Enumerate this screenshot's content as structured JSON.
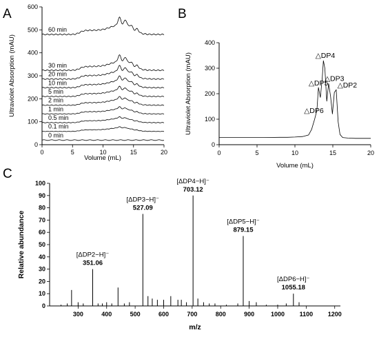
{
  "panels": {
    "a": "A",
    "b": "B",
    "c": "C"
  },
  "chart_data": [
    {
      "type": "line",
      "panel": "A",
      "xlabel": "Volume (mL)",
      "ylabel": "Ultraviolet Absorption (mAU)",
      "xlim": [
        0,
        20
      ],
      "ylim": [
        0,
        600
      ],
      "xticks": [
        "0",
        "5",
        "10",
        "15",
        "20"
      ],
      "yticks": [
        "0",
        "100",
        "200",
        "300",
        "400",
        "500",
        "600"
      ],
      "series": [
        {
          "name": "0 min",
          "offset": 20
        },
        {
          "name": "0.1 min",
          "offset": 58
        },
        {
          "name": "0.5 min",
          "offset": 96
        },
        {
          "name": "1 min",
          "offset": 134
        },
        {
          "name": "2 min",
          "offset": 172
        },
        {
          "name": "5 min",
          "offset": 210
        },
        {
          "name": "10 min",
          "offset": 248
        },
        {
          "name": "20 min",
          "offset": 286
        },
        {
          "name": "30 min",
          "offset": 324
        },
        {
          "name": "60 min",
          "offset": 480
        }
      ]
    },
    {
      "type": "line",
      "panel": "B",
      "xlabel": "Volume (mL)",
      "ylabel": "Ultraviolet Absorption (mAU)",
      "xlim": [
        0,
        20
      ],
      "ylim": [
        0,
        400
      ],
      "xticks": [
        "0",
        "5",
        "10",
        "15",
        "20"
      ],
      "yticks": [
        "0",
        "100",
        "200",
        "300",
        "400"
      ],
      "x": [
        0,
        2,
        4,
        6,
        8,
        9,
        10,
        11,
        11.8,
        12.2,
        12.6,
        12.9,
        13.1,
        13.35,
        13.6,
        13.75,
        13.95,
        14.2,
        14.45,
        14.7,
        14.95,
        15.2,
        15.45,
        15.7,
        15.95,
        16.3,
        17,
        18,
        20
      ],
      "y": [
        28,
        28,
        28,
        28,
        29,
        29,
        30,
        32,
        38,
        60,
        100,
        135,
        225,
        185,
        260,
        330,
        300,
        170,
        240,
        190,
        120,
        205,
        215,
        90,
        40,
        28,
        26,
        25,
        25
      ],
      "annotations": [
        {
          "label": "△DP6",
          "x": 12.5,
          "y": 125
        },
        {
          "label": "△DP5",
          "x": 13.1,
          "y": 232
        },
        {
          "label": "△DP4",
          "x": 14.0,
          "y": 340
        },
        {
          "label": "△DP3",
          "x": 15.2,
          "y": 250
        },
        {
          "label": "△DP2",
          "x": 16.9,
          "y": 225
        }
      ]
    },
    {
      "type": "bar",
      "panel": "C",
      "xlabel": "m/z",
      "ylabel": "Relative abundance",
      "xlim": [
        200,
        1220
      ],
      "ylim": [
        0,
        100
      ],
      "xticks": [
        "300",
        "400",
        "500",
        "600",
        "700",
        "800",
        "900",
        "1000",
        "1100",
        "1200"
      ],
      "yticks": [
        "0",
        "10",
        "20",
        "30",
        "40",
        "50",
        "60",
        "70",
        "80",
        "90",
        "100"
      ],
      "peaks_mz": [
        240,
        262,
        277,
        300,
        318,
        351.06,
        370,
        385,
        400,
        418,
        440,
        462,
        480,
        527.09,
        545,
        560,
        578,
        600,
        625,
        650,
        662,
        680,
        703.12,
        720,
        740,
        760,
        780,
        820,
        860,
        879.15,
        900,
        925,
        960,
        1000,
        1030,
        1055.18,
        1075
      ],
      "peaks_int": [
        1,
        2,
        13,
        3,
        2,
        30,
        2,
        2,
        3,
        2,
        15,
        2,
        3,
        75,
        8,
        6,
        5,
        5,
        8,
        5,
        5,
        3,
        90,
        6,
        3,
        2,
        2,
        1,
        2,
        57,
        4,
        3,
        1,
        1,
        2,
        10,
        3
      ],
      "labels": [
        {
          "ion": "[ΔDP2−H]⁻",
          "mz": "351.06"
        },
        {
          "ion": "[ΔDP3−H]⁻",
          "mz": "527.09"
        },
        {
          "ion": "[ΔDP4−H]⁻",
          "mz": "703.12"
        },
        {
          "ion": "[ΔDP5−H]⁻",
          "mz": "879.15"
        },
        {
          "ion": "[ΔDP6−H]⁻",
          "mz": "1055.18"
        }
      ]
    }
  ]
}
